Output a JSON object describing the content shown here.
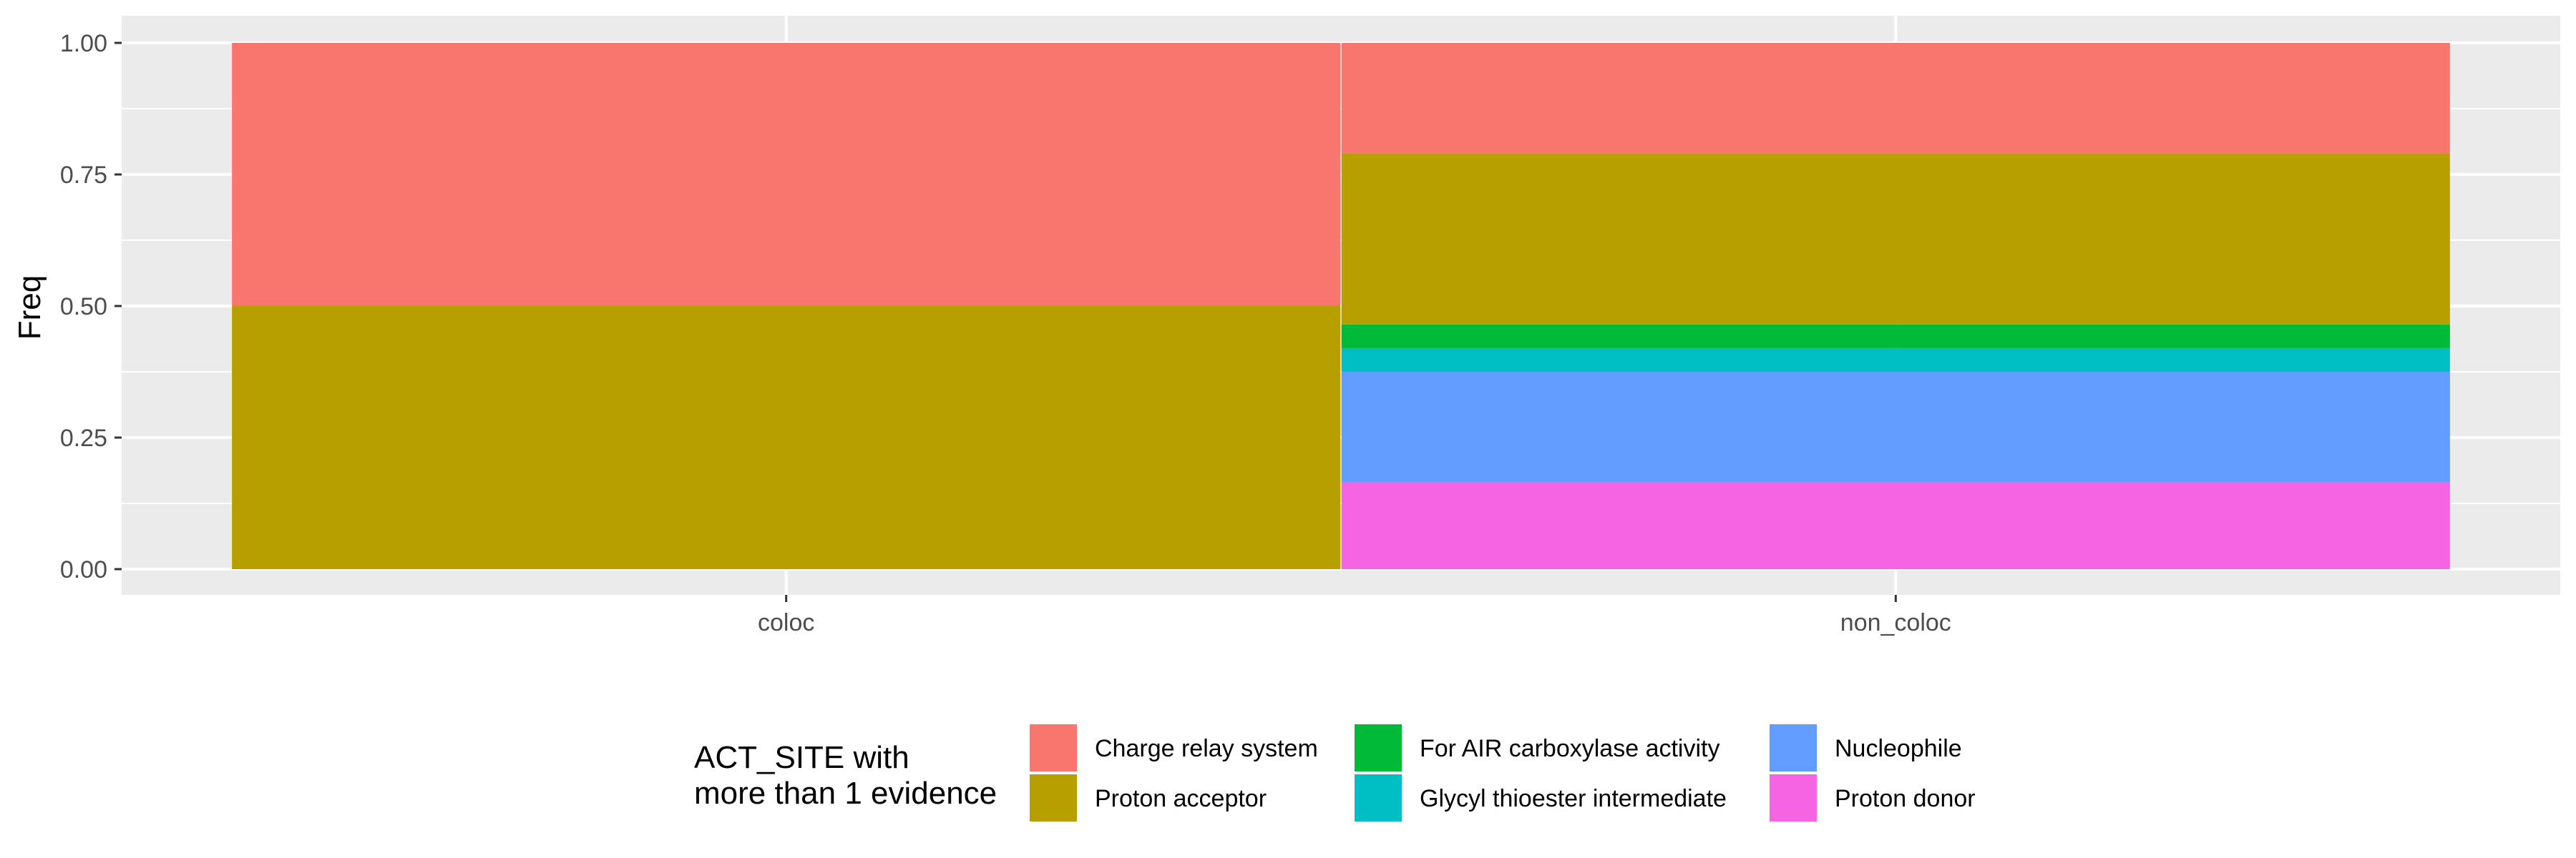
{
  "chart_data": {
    "type": "bar",
    "stacked": true,
    "title": "",
    "xlabel": "",
    "ylabel": "Freq",
    "ylim": [
      0,
      1.0
    ],
    "yticks": [
      "0.00",
      "0.25",
      "0.50",
      "0.75",
      "1.00"
    ],
    "categories": [
      "coloc",
      "non_coloc"
    ],
    "grid": true,
    "legend_position": "bottom",
    "legend": {
      "title_lines": [
        "ACT_SITE with",
        "more than 1 evidence"
      ]
    },
    "series": [
      {
        "name": "Charge relay system",
        "color": "#F8766D",
        "values": [
          0.5,
          0.21
        ]
      },
      {
        "name": "Proton acceptor",
        "color": "#B79F00",
        "values": [
          0.5,
          0.325
        ]
      },
      {
        "name": "For AIR carboxylase activity",
        "color": "#00BA38",
        "values": [
          0.0,
          0.045
        ]
      },
      {
        "name": "Glycyl thioester intermediate",
        "color": "#00BFC4",
        "values": [
          0.0,
          0.045
        ]
      },
      {
        "name": "Nucleophile",
        "color": "#619CFF",
        "values": [
          0.0,
          0.21
        ]
      },
      {
        "name": "Proton donor",
        "color": "#F564E3",
        "values": [
          0.0,
          0.165
        ]
      }
    ]
  }
}
